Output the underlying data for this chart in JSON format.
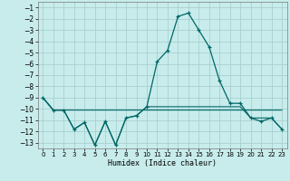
{
  "xlabel": "Humidex (Indice chaleur)",
  "background_color": "#c8ecec",
  "grid_color": "#a8d0d0",
  "line_color": "#006666",
  "xlim": [
    -0.5,
    23.5
  ],
  "ylim": [
    -13.5,
    -0.5
  ],
  "yticks": [
    -13,
    -12,
    -11,
    -10,
    -9,
    -8,
    -7,
    -6,
    -5,
    -4,
    -3,
    -2,
    -1
  ],
  "xticks": [
    0,
    1,
    2,
    3,
    4,
    5,
    6,
    7,
    8,
    9,
    10,
    11,
    12,
    13,
    14,
    15,
    16,
    17,
    18,
    19,
    20,
    21,
    22,
    23
  ],
  "series_main_x": [
    0,
    1,
    2,
    3,
    4,
    5,
    6,
    7,
    8,
    9,
    10,
    11,
    12,
    13,
    14,
    15,
    16,
    17,
    18,
    19,
    20,
    21,
    22,
    23
  ],
  "series_main_y": [
    -9.0,
    -10.1,
    -10.1,
    -11.8,
    -11.2,
    -13.2,
    -11.1,
    -13.2,
    -10.8,
    -10.6,
    -9.8,
    -5.8,
    -4.8,
    -1.8,
    -1.5,
    -3.0,
    -4.5,
    -7.5,
    -9.5,
    -9.5,
    -10.8,
    -11.1,
    -10.8,
    -11.8
  ],
  "series_upper_x": [
    0,
    1,
    2,
    3,
    4,
    5,
    6,
    7,
    8,
    9,
    10,
    11,
    12,
    13,
    14,
    15,
    16,
    17,
    18,
    19,
    20,
    21,
    22,
    23
  ],
  "series_upper_y": [
    -9.0,
    -10.1,
    -10.1,
    -10.1,
    -10.1,
    -10.1,
    -10.1,
    -10.1,
    -10.1,
    -10.1,
    -10.1,
    -10.1,
    -10.1,
    -10.1,
    -10.1,
    -10.1,
    -10.1,
    -10.1,
    -10.1,
    -10.1,
    -10.1,
    -10.1,
    -10.1,
    -10.1
  ],
  "series_lower_x": [
    0,
    1,
    2,
    3,
    4,
    5,
    6,
    7,
    8,
    9,
    10,
    11,
    12,
    13,
    14,
    15,
    16,
    17,
    18,
    19,
    20,
    21,
    22,
    23
  ],
  "series_lower_y": [
    -9.0,
    -10.1,
    -10.1,
    -11.8,
    -11.2,
    -13.2,
    -11.1,
    -13.2,
    -10.8,
    -10.6,
    -9.8,
    -9.8,
    -9.8,
    -9.8,
    -9.8,
    -9.8,
    -9.8,
    -9.8,
    -9.8,
    -9.8,
    -10.8,
    -10.8,
    -10.8,
    -11.8
  ]
}
